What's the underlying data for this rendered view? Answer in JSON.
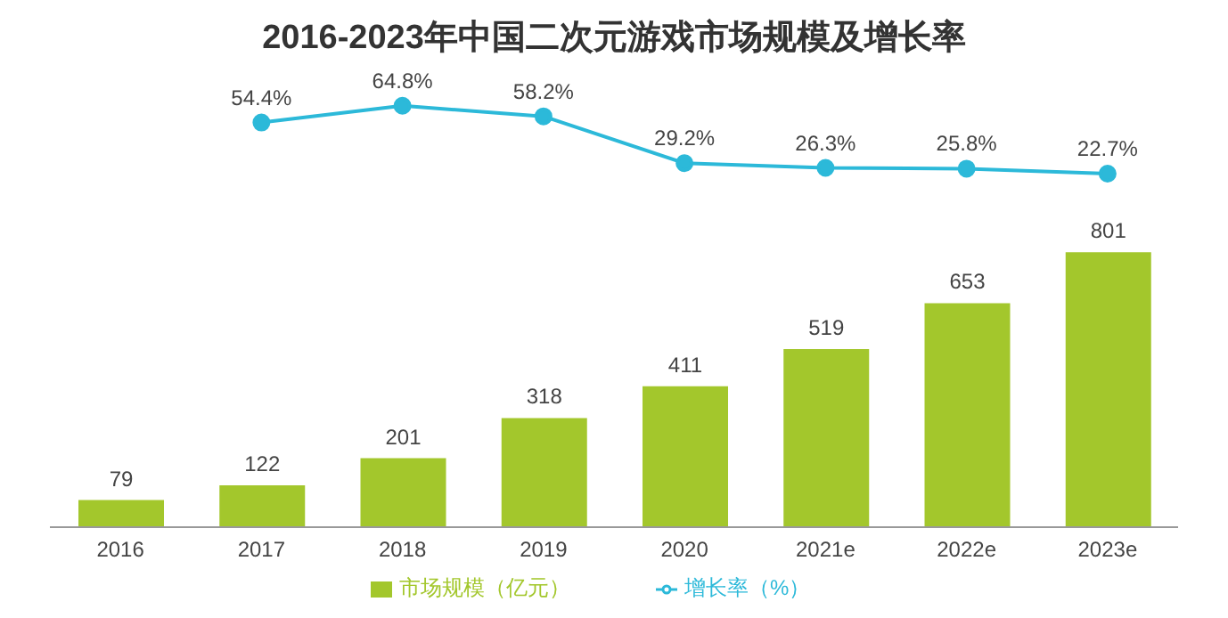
{
  "chart_data": [
    {
      "type": "line",
      "title": "2016-2023年中国二次元游戏市场规模及增长率",
      "categories": [
        null,
        null,
        null,
        null,
        null,
        null,
        null,
        null
      ],
      "tick_labels": false,
      "legend": "bottom",
      "marker": "circle",
      "series": [
        {
          "name": "增长率（%）",
          "color": "#2cb9d9",
          "values": [
            null,
            54.4,
            64.8,
            58.2,
            29.2,
            26.3,
            25.8,
            22.7
          ],
          "value_labels": [
            null,
            "54.4%",
            "64.8%",
            "58.2%",
            "29.2%",
            "26.3%",
            "25.8%",
            "22.7%"
          ]
        }
      ]
    },
    {
      "type": "bar",
      "categories": [
        "2016",
        "2017",
        "2018",
        "2019",
        "2020",
        "2021e",
        "2022e",
        "2023e"
      ],
      "tick_labels": "x",
      "legend": "bottom",
      "series": [
        {
          "name": "市场规模（亿元）",
          "color": "#a3c72c",
          "values": [
            79,
            122,
            201,
            318,
            411,
            519,
            653,
            801
          ],
          "value_labels": [
            "79",
            "122",
            "201",
            "318",
            "411",
            "519",
            "653",
            "801"
          ]
        }
      ]
    }
  ]
}
